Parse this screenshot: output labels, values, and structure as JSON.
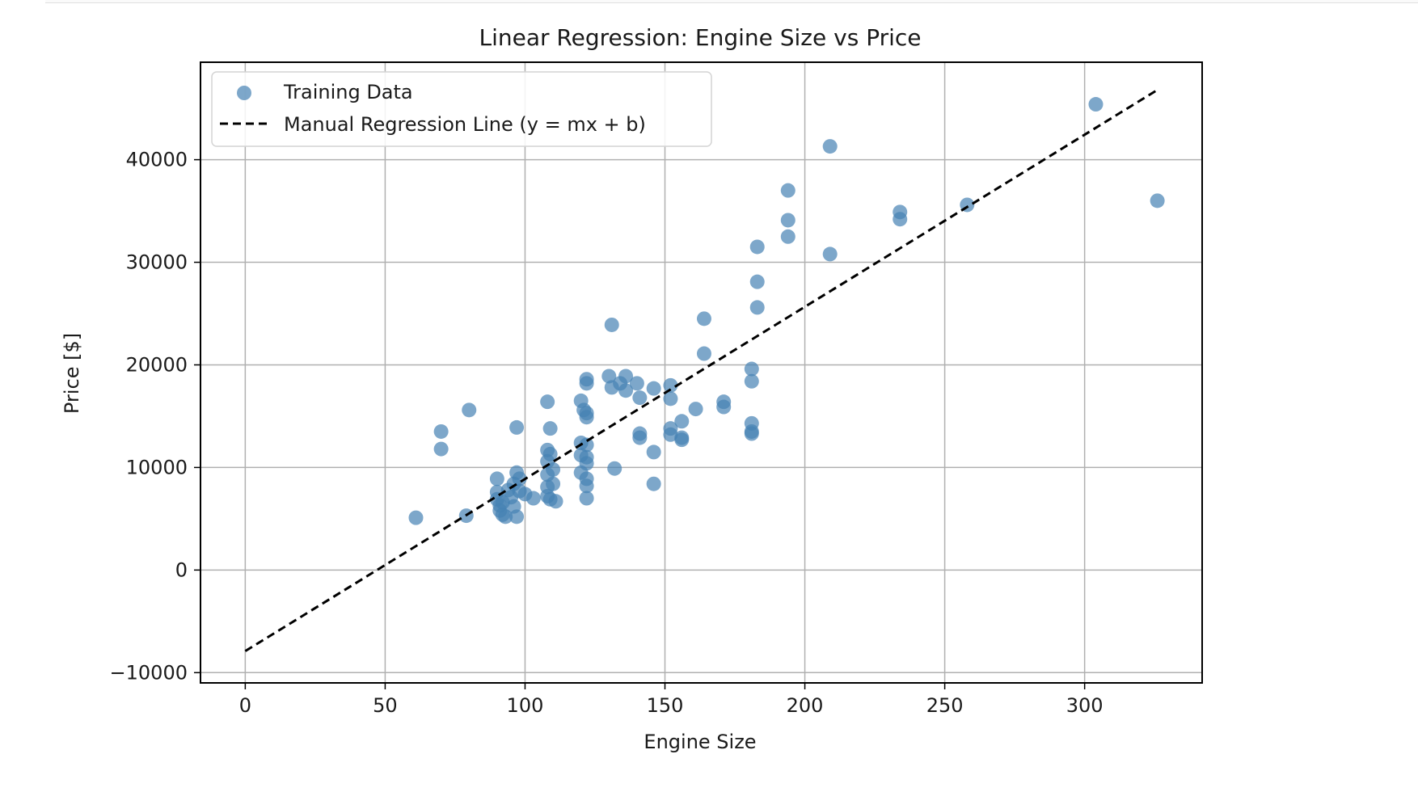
{
  "chart_data": {
    "type": "scatter",
    "title": "Linear Regression: Engine Size vs Price",
    "xlabel": "Engine Size",
    "ylabel": "Price [$]",
    "xlim": [
      -16,
      342
    ],
    "ylim": [
      -11000,
      49500
    ],
    "xticks": [
      0,
      50,
      100,
      150,
      200,
      250,
      300
    ],
    "yticks": [
      -10000,
      0,
      10000,
      20000,
      30000,
      40000
    ],
    "xtick_labels": [
      "0",
      "50",
      "100",
      "150",
      "200",
      "250",
      "300"
    ],
    "ytick_labels": [
      "−10000",
      "0",
      "10000",
      "20000",
      "30000",
      "40000"
    ],
    "grid": true,
    "legend_position": "top-left",
    "series": [
      {
        "name": "Training Data",
        "kind": "scatter",
        "color": "#4682b4",
        "points": [
          [
            61,
            5100
          ],
          [
            70,
            13500
          ],
          [
            70,
            11800
          ],
          [
            79,
            5300
          ],
          [
            80,
            15600
          ],
          [
            90,
            8900
          ],
          [
            90,
            7600
          ],
          [
            90,
            6900
          ],
          [
            91,
            6300
          ],
          [
            91,
            5800
          ],
          [
            92,
            5400
          ],
          [
            92,
            6600
          ],
          [
            93,
            5200
          ],
          [
            94,
            7800
          ],
          [
            95,
            7100
          ],
          [
            96,
            6200
          ],
          [
            96,
            8400
          ],
          [
            97,
            9500
          ],
          [
            97,
            5200
          ],
          [
            97,
            13900
          ],
          [
            98,
            7700
          ],
          [
            98,
            8900
          ],
          [
            100,
            7400
          ],
          [
            103,
            7000
          ],
          [
            108,
            16400
          ],
          [
            108,
            11700
          ],
          [
            108,
            10600
          ],
          [
            108,
            9300
          ],
          [
            108,
            7200
          ],
          [
            108,
            8100
          ],
          [
            109,
            13800
          ],
          [
            109,
            11300
          ],
          [
            109,
            6900
          ],
          [
            110,
            9800
          ],
          [
            110,
            8400
          ],
          [
            111,
            6700
          ],
          [
            120,
            12400
          ],
          [
            120,
            11200
          ],
          [
            120,
            16500
          ],
          [
            120,
            9500
          ],
          [
            121,
            15600
          ],
          [
            122,
            18600
          ],
          [
            122,
            18200
          ],
          [
            122,
            15300
          ],
          [
            122,
            14900
          ],
          [
            122,
            12200
          ],
          [
            122,
            11000
          ],
          [
            122,
            10400
          ],
          [
            122,
            8900
          ],
          [
            122,
            8200
          ],
          [
            122,
            7000
          ],
          [
            130,
            18900
          ],
          [
            131,
            17800
          ],
          [
            131,
            23900
          ],
          [
            132,
            9900
          ],
          [
            134,
            18200
          ],
          [
            136,
            17500
          ],
          [
            136,
            18900
          ],
          [
            140,
            18200
          ],
          [
            141,
            16800
          ],
          [
            141,
            13300
          ],
          [
            141,
            12900
          ],
          [
            146,
            17700
          ],
          [
            146,
            11500
          ],
          [
            146,
            8400
          ],
          [
            152,
            18000
          ],
          [
            152,
            16700
          ],
          [
            152,
            13800
          ],
          [
            152,
            13200
          ],
          [
            156,
            14500
          ],
          [
            156,
            12900
          ],
          [
            156,
            12700
          ],
          [
            161,
            15700
          ],
          [
            164,
            24500
          ],
          [
            164,
            21100
          ],
          [
            171,
            16400
          ],
          [
            171,
            15900
          ],
          [
            181,
            19600
          ],
          [
            181,
            18400
          ],
          [
            181,
            14300
          ],
          [
            181,
            13500
          ],
          [
            181,
            13300
          ],
          [
            183,
            31500
          ],
          [
            183,
            28100
          ],
          [
            183,
            25600
          ],
          [
            194,
            37000
          ],
          [
            194,
            34100
          ],
          [
            194,
            32500
          ],
          [
            209,
            41300
          ],
          [
            209,
            30800
          ],
          [
            234,
            34900
          ],
          [
            234,
            34200
          ],
          [
            258,
            35600
          ],
          [
            304,
            45400
          ],
          [
            326,
            36000
          ]
        ]
      },
      {
        "name": "Manual Regression Line (y = mx + b)",
        "kind": "line",
        "style": "dashed",
        "color": "#000000",
        "x": [
          0,
          326
        ],
        "y": [
          -7900,
          46800
        ]
      }
    ]
  }
}
